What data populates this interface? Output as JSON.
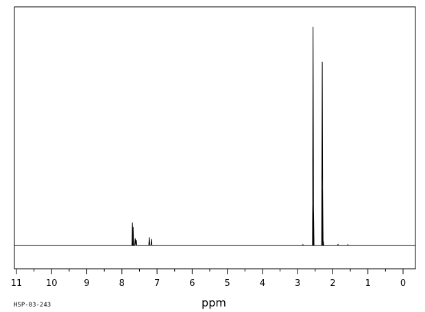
{
  "sample_id": "HSP-03-243",
  "chart_data": {
    "type": "line",
    "title": "",
    "xlabel": "ppm",
    "ylabel": "",
    "xlim": [
      11,
      0
    ],
    "x_reversed": true,
    "ylim": [
      0,
      1
    ],
    "grid": false,
    "x_major_ticks": [
      11,
      10,
      9,
      8,
      7,
      6,
      5,
      4,
      3,
      2,
      1,
      0
    ],
    "x_tick_labels": [
      "11",
      "10",
      "9",
      "8",
      "7",
      "6",
      "5",
      "4",
      "3",
      "2",
      "1",
      "0"
    ],
    "x_minor_step": 0.5,
    "series": [
      {
        "values": [
          {
            "x": 7.7,
            "y": 0.105
          },
          {
            "x": 7.68,
            "y": 0.085
          },
          {
            "x": 7.62,
            "y": 0.033
          },
          {
            "x": 7.59,
            "y": 0.025
          },
          {
            "x": 7.22,
            "y": 0.037
          },
          {
            "x": 7.16,
            "y": 0.03
          },
          {
            "x": 2.56,
            "y": 1.0
          },
          {
            "x": 2.55,
            "y": 0.185
          },
          {
            "x": 2.3,
            "y": 0.84
          },
          {
            "x": 2.29,
            "y": 0.26
          },
          {
            "x": 2.27,
            "y": 0.02
          },
          {
            "x": 2.85,
            "y": 0.004
          },
          {
            "x": 1.85,
            "y": 0.005
          },
          {
            "x": 1.57,
            "y": 0.004
          }
        ]
      }
    ]
  }
}
